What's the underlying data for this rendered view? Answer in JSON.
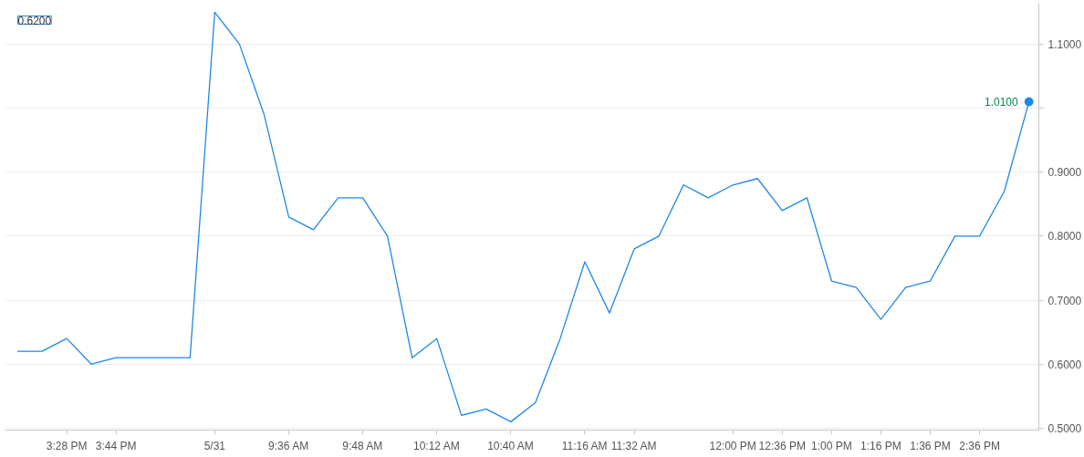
{
  "chart_data": {
    "type": "line",
    "categories": [
      null,
      null,
      "3:28 PM",
      null,
      "3:44 PM",
      null,
      null,
      null,
      "5/31",
      null,
      null,
      "9:36 AM",
      null,
      null,
      "9:48 AM",
      null,
      null,
      "10:12 AM",
      null,
      null,
      "10:40 AM",
      null,
      null,
      "11:16 AM",
      null,
      "11:32 AM",
      null,
      null,
      null,
      "12:00 PM",
      null,
      "12:36 PM",
      null,
      "1:00 PM",
      null,
      "1:16 PM",
      null,
      "1:36 PM",
      null,
      "2:36 PM",
      null,
      null
    ],
    "series": [
      {
        "color": "#1e88e5",
        "values": [
          0.62,
          0.62,
          0.64,
          0.6,
          0.61,
          0.61,
          0.61,
          0.61,
          1.15,
          1.1,
          0.99,
          0.83,
          0.81,
          0.86,
          0.86,
          0.8,
          0.61,
          0.64,
          0.52,
          0.53,
          0.51,
          0.54,
          0.64,
          0.76,
          0.68,
          0.78,
          0.8,
          0.88,
          0.86,
          0.88,
          0.89,
          0.84,
          0.86,
          0.73,
          0.72,
          0.67,
          0.72,
          0.73,
          0.8,
          0.8,
          0.87,
          1.01
        ]
      }
    ],
    "ylim": [
      0.497,
      1.164
    ],
    "yticks": [
      {
        "value": 0.5,
        "label": "0.5000"
      },
      {
        "value": 0.6,
        "label": "0.6000"
      },
      {
        "value": 0.7,
        "label": "0.7000"
      },
      {
        "value": 0.8,
        "label": "0.8000"
      },
      {
        "value": 0.9,
        "label": "0.9000"
      },
      {
        "value": 1.0,
        "label": null
      },
      {
        "value": 1.1,
        "label": "1.1000"
      }
    ],
    "grid": "y",
    "annotations": [
      "0.6200",
      "1.0100"
    ]
  }
}
